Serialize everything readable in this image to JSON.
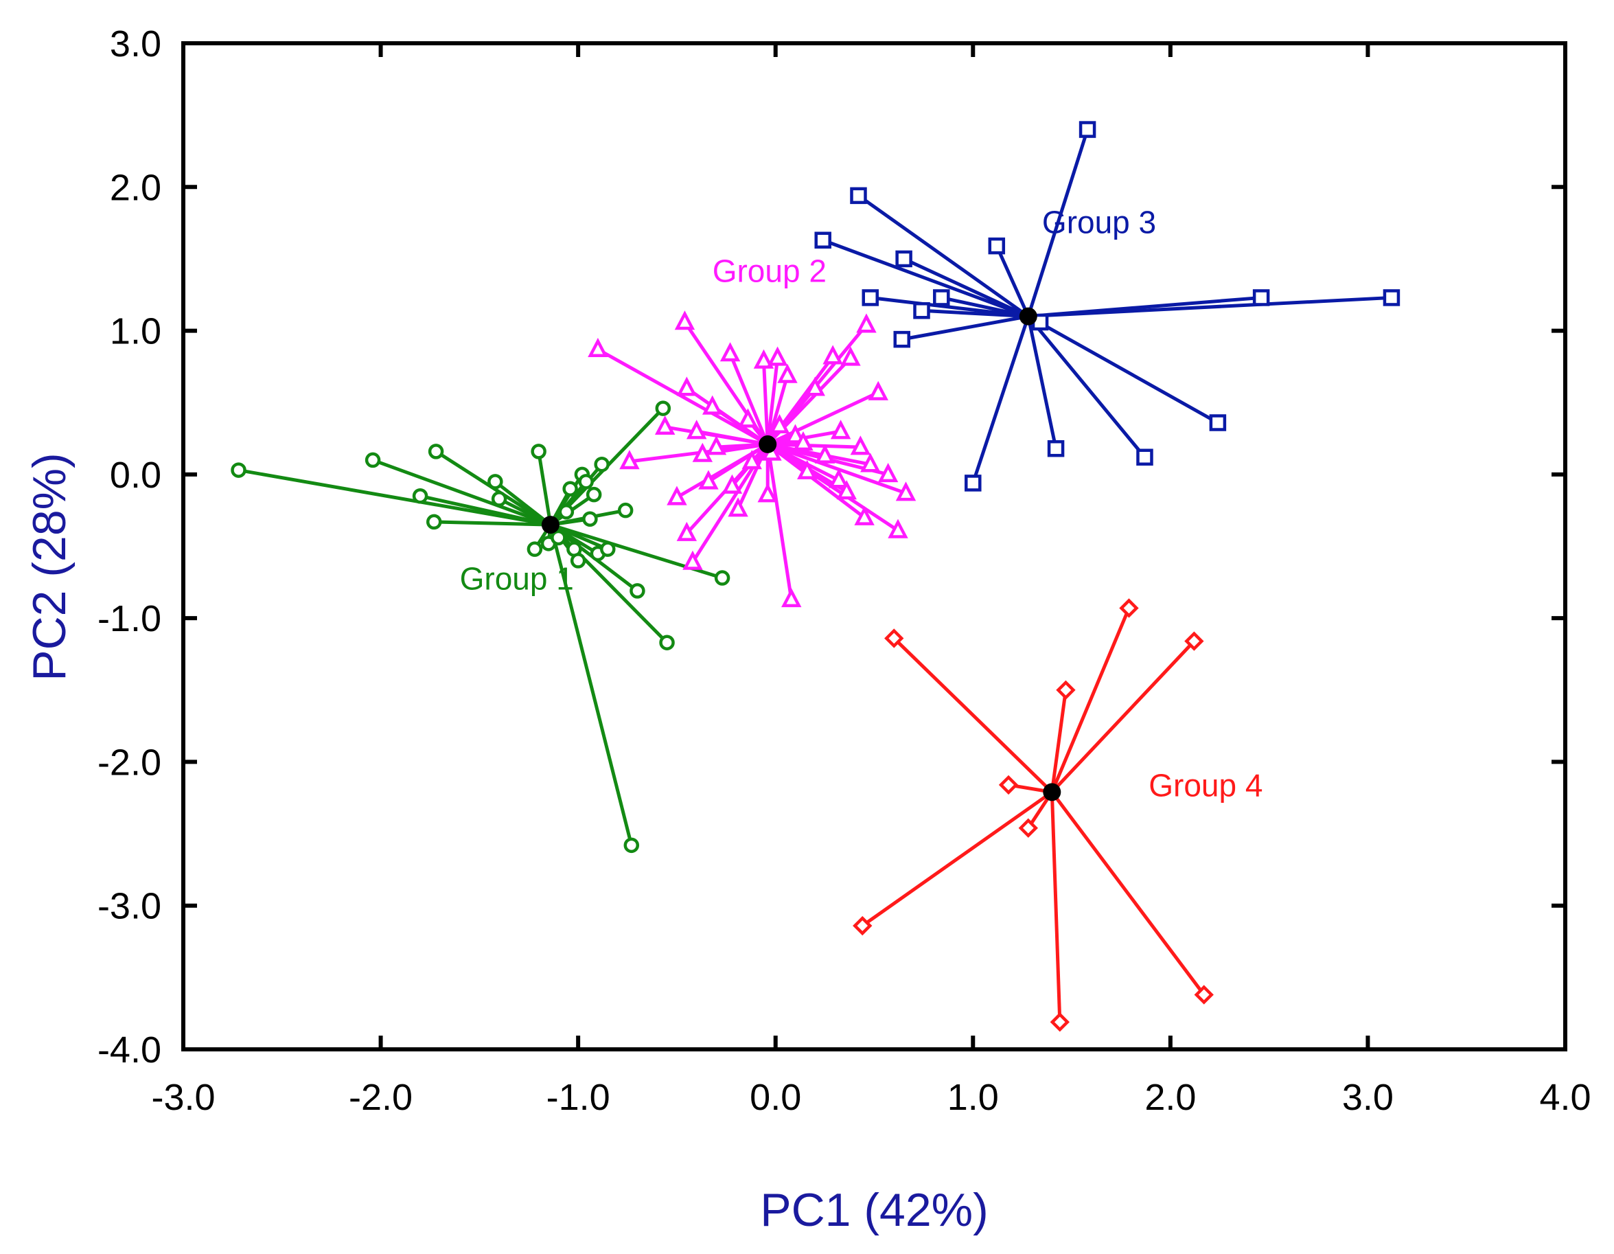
{
  "chart_data": {
    "type": "scatter",
    "subtype": "PCA spider plot (points connected to group centroid)",
    "title": "",
    "xlabel": "PC1 (42%)",
    "ylabel": "PC2 (28%)",
    "xlim": [
      -3.0,
      4.0
    ],
    "ylim": [
      -4.0,
      3.0
    ],
    "grid": false,
    "x_ticks": [
      -3.0,
      -2.0,
      -1.0,
      0.0,
      1.0,
      2.0,
      3.0,
      4.0
    ],
    "y_ticks": [
      -4.0,
      -3.0,
      -2.0,
      -1.0,
      0.0,
      1.0,
      2.0,
      3.0
    ],
    "x_tick_labels": [
      "-3.0",
      "-2.0",
      "-1.0",
      "0.0",
      "1.0",
      "2.0",
      "3.0",
      "4.0"
    ],
    "y_tick_labels": [
      "-4.0",
      "-3.0",
      "-2.0",
      "-1.0",
      "0.0",
      "1.0",
      "2.0",
      "3.0"
    ],
    "colors": {
      "axis_title": "#1a1a9e",
      "centroid": "#000000",
      "frame": "#000000"
    },
    "series": [
      {
        "name": "Group 1",
        "color": "#138a13",
        "marker": "circle",
        "label_at": [
          -1.6,
          -0.8
        ],
        "centroid": [
          -1.14,
          -0.35
        ],
        "points": [
          [
            -2.72,
            0.03
          ],
          [
            -2.04,
            0.1
          ],
          [
            -1.72,
            0.16
          ],
          [
            -1.8,
            -0.15
          ],
          [
            -1.73,
            -0.33
          ],
          [
            -1.42,
            -0.05
          ],
          [
            -1.4,
            -0.17
          ],
          [
            -1.2,
            0.16
          ],
          [
            -1.22,
            -0.52
          ],
          [
            -1.15,
            -0.48
          ],
          [
            -1.1,
            -0.44
          ],
          [
            -1.06,
            -0.26
          ],
          [
            -1.04,
            -0.1
          ],
          [
            -1.02,
            -0.52
          ],
          [
            -1.0,
            -0.6
          ],
          [
            -0.98,
            0.0
          ],
          [
            -0.96,
            -0.05
          ],
          [
            -0.94,
            -0.31
          ],
          [
            -0.92,
            -0.14
          ],
          [
            -0.9,
            -0.55
          ],
          [
            -0.88,
            0.07
          ],
          [
            -0.85,
            -0.52
          ],
          [
            -0.76,
            -0.25
          ],
          [
            -0.73,
            -2.58
          ],
          [
            -0.7,
            -0.81
          ],
          [
            -0.57,
            0.46
          ],
          [
            -0.55,
            -1.17
          ],
          [
            -0.27,
            -0.72
          ]
        ]
      },
      {
        "name": "Group 2",
        "color": "#ff1aff",
        "marker": "triangle",
        "label_at": [
          -0.32,
          1.34
        ],
        "centroid": [
          -0.04,
          0.21
        ],
        "points": [
          [
            -0.9,
            0.87
          ],
          [
            -0.74,
            0.09
          ],
          [
            -0.56,
            0.33
          ],
          [
            -0.5,
            -0.16
          ],
          [
            -0.46,
            1.06
          ],
          [
            -0.45,
            0.6
          ],
          [
            -0.45,
            -0.41
          ],
          [
            -0.42,
            -0.61
          ],
          [
            -0.4,
            0.3
          ],
          [
            -0.37,
            0.14
          ],
          [
            -0.34,
            -0.05
          ],
          [
            -0.32,
            0.47
          ],
          [
            -0.3,
            0.19
          ],
          [
            -0.23,
            0.84
          ],
          [
            -0.22,
            -0.08
          ],
          [
            -0.19,
            -0.24
          ],
          [
            -0.14,
            0.38
          ],
          [
            -0.12,
            0.09
          ],
          [
            -0.06,
            0.79
          ],
          [
            -0.04,
            -0.14
          ],
          [
            -0.02,
            0.15
          ],
          [
            0.01,
            0.81
          ],
          [
            0.02,
            0.34
          ],
          [
            0.06,
            0.69
          ],
          [
            0.08,
            -0.87
          ],
          [
            0.1,
            0.27
          ],
          [
            0.14,
            0.22
          ],
          [
            0.16,
            0.02
          ],
          [
            0.2,
            0.6
          ],
          [
            0.25,
            0.13
          ],
          [
            0.29,
            0.82
          ],
          [
            0.32,
            -0.04
          ],
          [
            0.33,
            0.3
          ],
          [
            0.36,
            -0.12
          ],
          [
            0.38,
            0.81
          ],
          [
            0.43,
            0.19
          ],
          [
            0.45,
            -0.3
          ],
          [
            0.46,
            1.04
          ],
          [
            0.48,
            0.07
          ],
          [
            0.52,
            0.57
          ],
          [
            0.57,
            0.0
          ],
          [
            0.62,
            -0.39
          ],
          [
            0.66,
            -0.13
          ]
        ]
      },
      {
        "name": "Group 3",
        "color": "#0a1aa6",
        "marker": "square",
        "label_at": [
          1.35,
          1.68
        ],
        "centroid": [
          1.28,
          1.1
        ],
        "points": [
          [
            0.24,
            1.63
          ],
          [
            0.42,
            1.94
          ],
          [
            0.48,
            1.23
          ],
          [
            0.64,
            0.94
          ],
          [
            0.65,
            1.5
          ],
          [
            0.74,
            1.14
          ],
          [
            0.84,
            1.23
          ],
          [
            1.0,
            -0.06
          ],
          [
            1.12,
            1.59
          ],
          [
            1.34,
            1.06
          ],
          [
            1.42,
            0.18
          ],
          [
            1.58,
            2.4
          ],
          [
            1.87,
            0.12
          ],
          [
            2.24,
            0.36
          ],
          [
            2.46,
            1.23
          ],
          [
            3.12,
            1.23
          ]
        ]
      },
      {
        "name": "Group 4",
        "color": "#ff1a1a",
        "marker": "diamond",
        "label_at": [
          1.89,
          -2.24
        ],
        "centroid": [
          1.4,
          -2.21
        ],
        "points": [
          [
            0.44,
            -3.14
          ],
          [
            0.6,
            -1.14
          ],
          [
            1.18,
            -2.16
          ],
          [
            1.28,
            -2.46
          ],
          [
            1.44,
            -3.81
          ],
          [
            1.47,
            -1.5
          ],
          [
            1.79,
            -0.93
          ],
          [
            2.12,
            -1.16
          ],
          [
            2.17,
            -3.62
          ]
        ]
      }
    ]
  }
}
